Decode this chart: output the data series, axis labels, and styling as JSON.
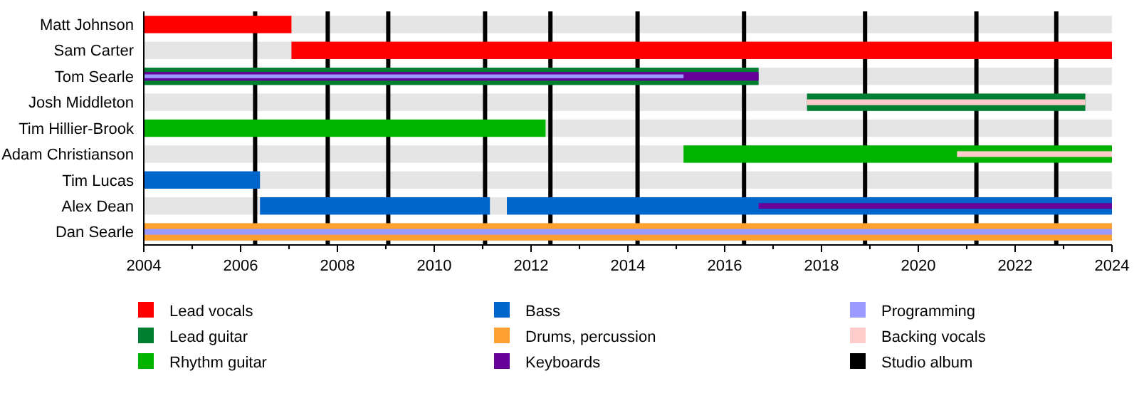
{
  "chart_data": {
    "type": "bar",
    "orientation": "horizontal",
    "legend": "bottom",
    "categories": [
      "Matt Johnson",
      "Sam Carter",
      "Tom Searle",
      "Josh Middleton",
      "Tim Hillier-Brook",
      "Adam Christianson",
      "Tim Lucas",
      "Alex Dean",
      "Dan Searle"
    ],
    "xlim": [
      2004,
      2024
    ],
    "xticks": [
      2004,
      {
        "value": 2005,
        "label": null
      },
      2006,
      {
        "value": 2007,
        "label": null
      },
      2008,
      {
        "value": 2009,
        "label": null
      },
      2010,
      {
        "value": 2011,
        "label": null
      },
      2012,
      {
        "value": 2013,
        "label": null
      },
      2014,
      {
        "value": 2015,
        "label": null
      },
      2016,
      {
        "value": 2017,
        "label": null
      },
      2018,
      {
        "value": 2019,
        "label": null
      },
      2020,
      {
        "value": 2021,
        "label": null
      },
      2022,
      {
        "value": 2023,
        "label": null
      },
      2024
    ],
    "series": [
      {
        "name": "Lead vocals",
        "color": "#ff0000",
        "base": [
          2004,
          2007.05,
          null,
          null,
          null,
          null,
          null,
          null,
          null
        ],
        "values": [
          3.05,
          16.95,
          null,
          null,
          null,
          null,
          null,
          null,
          null
        ]
      },
      {
        "name": "Lead guitar",
        "color": "#007f33",
        "base": [
          null,
          null,
          2004,
          2017.7,
          null,
          null,
          null,
          null,
          null
        ],
        "values": [
          null,
          null,
          12.7,
          5.75,
          null,
          null,
          null,
          null,
          null
        ]
      },
      {
        "name": "Rhythm guitar",
        "color": "#00b300",
        "base": [
          null,
          null,
          null,
          null,
          2004,
          2015.15,
          null,
          null,
          null
        ],
        "values": [
          null,
          null,
          null,
          null,
          8.3,
          8.85,
          null,
          null,
          null
        ]
      },
      {
        "name": "Bass",
        "color": "#0066cc",
        "base": [
          null,
          null,
          null,
          null,
          null,
          null,
          2004,
          2006.4,
          null
        ],
        "values": [
          null,
          null,
          null,
          null,
          null,
          null,
          2.4,
          4.75,
          null
        ]
      },
      {
        "color": "#0066cc",
        "base": [
          null,
          null,
          null,
          null,
          null,
          null,
          null,
          2011.5,
          null
        ],
        "values": [
          null,
          null,
          null,
          null,
          null,
          null,
          null,
          12.5,
          null
        ]
      },
      {
        "name": "Drums, percussion",
        "color": "#ffa030",
        "base": [
          null,
          null,
          null,
          null,
          null,
          null,
          null,
          null,
          2004
        ],
        "values": [
          null,
          null,
          null,
          null,
          null,
          null,
          null,
          null,
          20
        ]
      },
      {
        "name": "Keyboards",
        "color": "#660099",
        "base": [
          null,
          null,
          2004,
          null,
          null,
          null,
          null,
          2016.7,
          null
        ],
        "values": [
          null,
          null,
          12.7,
          null,
          null,
          null,
          null,
          7.3,
          null
        ]
      },
      {
        "name": "Programming",
        "color": "#9999ff",
        "base": [
          null,
          null,
          2004,
          null,
          null,
          null,
          null,
          null,
          2004
        ],
        "values": [
          null,
          null,
          11.15,
          null,
          null,
          null,
          null,
          null,
          20
        ]
      },
      {
        "name": "Backing vocals",
        "color": "#ffcccc",
        "base": [
          null,
          null,
          null,
          2017.7,
          null,
          2020.8,
          null,
          null,
          null
        ],
        "values": [
          null,
          null,
          null,
          5.75,
          null,
          3.2,
          null,
          null,
          null
        ]
      }
    ],
    "ref_lines": [
      {
        "axis": "x",
        "value": 2006.3,
        "label": "Studio album",
        "color": "#000000"
      },
      {
        "axis": "x",
        "value": 2007.8,
        "color": "#000000"
      },
      {
        "axis": "x",
        "value": 2009.05,
        "color": "#000000"
      },
      {
        "axis": "x",
        "value": 2011.05,
        "color": "#000000"
      },
      {
        "axis": "x",
        "value": 2012.4,
        "color": "#000000"
      },
      {
        "axis": "x",
        "value": 2014.2,
        "color": "#000000"
      },
      {
        "axis": "x",
        "value": 2016.4,
        "color": "#000000"
      },
      {
        "axis": "x",
        "value": 2018.9,
        "color": "#000000"
      },
      {
        "axis": "x",
        "value": 2021.2,
        "color": "#000000"
      },
      {
        "axis": "x",
        "value": 2022.85,
        "color": "#000000"
      }
    ]
  }
}
